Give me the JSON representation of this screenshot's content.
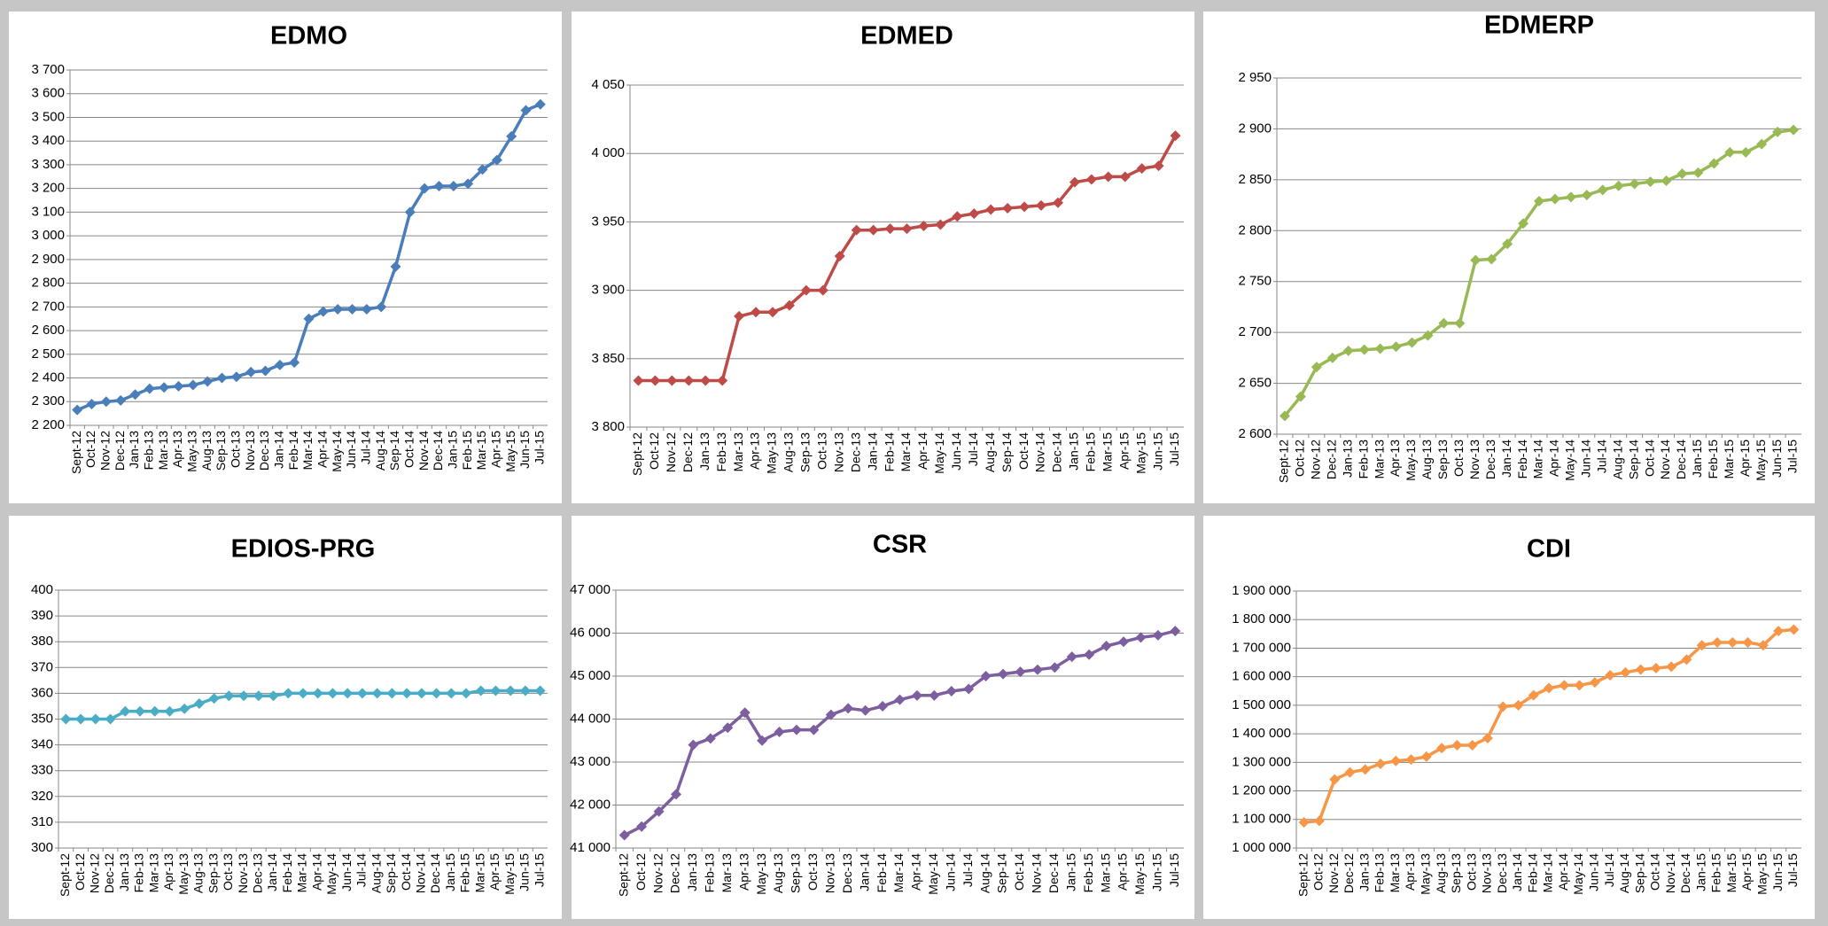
{
  "chart_data": [
    {
      "type": "line",
      "title": "EDMO",
      "color": "#4a7ebb",
      "categories": [
        "Sept-12",
        "Oct-12",
        "Nov-12",
        "Dec-12",
        "Jan-13",
        "Feb-13",
        "Mar-13",
        "Apr-13",
        "May-13",
        "Aug-13",
        "Sep-13",
        "Oct-13",
        "Nov-13",
        "Dec-13",
        "Jan-14",
        "Feb-14",
        "Mar-14",
        "Apr-14",
        "May-14",
        "Jun-14",
        "Jul-14",
        "Aug-14",
        "Sep-14",
        "Oct-14",
        "Nov-14",
        "Dec-14",
        "Jan-15",
        "Feb-15",
        "Mar-15",
        "Apr-15",
        "May-15",
        "Jun-15",
        "Jul-15"
      ],
      "values": [
        2265,
        2290,
        2300,
        2305,
        2330,
        2355,
        2360,
        2365,
        2370,
        2385,
        2400,
        2405,
        2425,
        2430,
        2455,
        2465,
        2650,
        2680,
        2690,
        2690,
        2690,
        2700,
        2870,
        3100,
        3200,
        3210,
        3210,
        3220,
        3280,
        3320,
        3420,
        3530,
        3555
      ],
      "ylim": [
        2200,
        3700
      ],
      "yticks": [
        {
          "value": 2200,
          "label": "2 200"
        },
        {
          "value": 2300,
          "label": "2 300"
        },
        {
          "value": 2400,
          "label": "2 400"
        },
        {
          "value": 2500,
          "label": "2 500"
        },
        {
          "value": 2600,
          "label": "2 600"
        },
        {
          "value": 2700,
          "label": "2 700"
        },
        {
          "value": 2800,
          "label": "2 800"
        },
        {
          "value": 2900,
          "label": "2 900"
        },
        {
          "value": 3000,
          "label": "3 000"
        },
        {
          "value": 3100,
          "label": "3 100"
        },
        {
          "value": 3200,
          "label": "3 200"
        },
        {
          "value": 3300,
          "label": "3 300"
        },
        {
          "value": 3400,
          "label": "3 400"
        },
        {
          "value": 3500,
          "label": "3 500"
        },
        {
          "value": 3600,
          "label": "3 600"
        },
        {
          "value": 3700,
          "label": "3 700"
        }
      ],
      "grid": true
    },
    {
      "type": "line",
      "title": "EDMED",
      "color": "#be4b48",
      "categories": [
        "Sept-12",
        "Oct-12",
        "Nov-12",
        "Dec-12",
        "Jan-13",
        "Feb-13",
        "Mar-13",
        "Apr-13",
        "May-13",
        "Aug-13",
        "Sep-13",
        "Oct-13",
        "Nov-13",
        "Dec-13",
        "Jan-14",
        "Feb-14",
        "Mar-14",
        "Apr-14",
        "May-14",
        "Jun-14",
        "Jul-14",
        "Aug-14",
        "Sep-14",
        "Oct-14",
        "Nov-14",
        "Dec-14",
        "Jan-15",
        "Feb-15",
        "Mar-15",
        "Apr-15",
        "May-15",
        "Jun-15",
        "Jul-15"
      ],
      "values": [
        3834,
        3834,
        3834,
        3834,
        3834,
        3834,
        3881,
        3884,
        3884,
        3889,
        3900,
        3900,
        3925,
        3944,
        3944,
        3945,
        3945,
        3947,
        3948,
        3954,
        3956,
        3959,
        3960,
        3961,
        3962,
        3964,
        3979,
        3981,
        3983,
        3983,
        3989,
        3991,
        4013
      ],
      "ylim": [
        3800,
        4050
      ],
      "yticks": [
        {
          "value": 3800,
          "label": "3 800"
        },
        {
          "value": 3850,
          "label": "3 850"
        },
        {
          "value": 3900,
          "label": "3 900"
        },
        {
          "value": 3950,
          "label": "3 950"
        },
        {
          "value": 4000,
          "label": "4 000"
        },
        {
          "value": 4050,
          "label": "4 050"
        }
      ],
      "grid": true
    },
    {
      "type": "line",
      "title": "EDMERP",
      "color": "#98b954",
      "categories": [
        "Sept-12",
        "Oct-12",
        "Nov-12",
        "Dec-12",
        "Jan-13",
        "Feb-13",
        "Mar-13",
        "Apr-13",
        "May-13",
        "Aug-13",
        "Sep-13",
        "Oct-13",
        "Nov-13",
        "Dec-13",
        "Jan-14",
        "Feb-14",
        "Mar-14",
        "Apr-14",
        "May-14",
        "Jun-14",
        "Jul-14",
        "Aug-14",
        "Sep-14",
        "Oct-14",
        "Nov-14",
        "Dec-14",
        "Jan-15",
        "Feb-15",
        "Mar-15",
        "Apr-15",
        "May-15",
        "Jun-15",
        "Jul-15"
      ],
      "values": [
        2618,
        2637,
        2666,
        2675,
        2682,
        2683,
        2684,
        2686,
        2690,
        2697,
        2709,
        2709,
        2771,
        2772,
        2787,
        2807,
        2829,
        2831,
        2833,
        2835,
        2840,
        2844,
        2846,
        2848,
        2849,
        2856,
        2857,
        2866,
        2877,
        2877,
        2885,
        2897,
        2899
      ],
      "ylim": [
        2600,
        2950
      ],
      "yticks": [
        {
          "value": 2600,
          "label": "2 600"
        },
        {
          "value": 2650,
          "label": "2 650"
        },
        {
          "value": 2700,
          "label": "2 700"
        },
        {
          "value": 2750,
          "label": "2 750"
        },
        {
          "value": 2800,
          "label": "2 800"
        },
        {
          "value": 2850,
          "label": "2 850"
        },
        {
          "value": 2900,
          "label": "2 900"
        },
        {
          "value": 2950,
          "label": "2 950"
        }
      ],
      "grid": true
    },
    {
      "type": "line",
      "title": "EDIOS-PRG",
      "color": "#4bacc6",
      "categories": [
        "Sept-12",
        "Oct-12",
        "Nov-12",
        "Dec-12",
        "Jan-13",
        "Feb-13",
        "Mar-13",
        "Apr-13",
        "May-13",
        "Aug-13",
        "Sep-13",
        "Oct-13",
        "Nov-13",
        "Dec-13",
        "Jan-14",
        "Feb-14",
        "Mar-14",
        "Apr-14",
        "May-14",
        "Jun-14",
        "Jul-14",
        "Aug-14",
        "Sep-14",
        "Oct-14",
        "Nov-14",
        "Dec-14",
        "Jan-15",
        "Feb-15",
        "Mar-15",
        "Apr-15",
        "May-15",
        "Jun-15",
        "Jul-15"
      ],
      "values": [
        350,
        350,
        350,
        350,
        353,
        353,
        353,
        353,
        354,
        356,
        358,
        359,
        359,
        359,
        359,
        360,
        360,
        360,
        360,
        360,
        360,
        360,
        360,
        360,
        360,
        360,
        360,
        360,
        361,
        361,
        361,
        361,
        361
      ],
      "ylim": [
        300,
        400
      ],
      "yticks": [
        300,
        310,
        320,
        330,
        340,
        350,
        360,
        370,
        380,
        390,
        400
      ],
      "grid": true
    },
    {
      "type": "line",
      "title": "CSR",
      "color": "#7d5fa0",
      "categories": [
        "Sept-12",
        "Oct-12",
        "Nov-12",
        "Dec-12",
        "Jan-13",
        "Feb-13",
        "Mar-13",
        "Apr-13",
        "May-13",
        "Aug-13",
        "Sep-13",
        "Oct-13",
        "Nov-13",
        "Dec-13",
        "Jan-14",
        "Feb-14",
        "Mar-14",
        "Apr-14",
        "May-14",
        "Jun-14",
        "Jul-14",
        "Aug-14",
        "Sep-14",
        "Oct-14",
        "Nov-14",
        "Dec-14",
        "Jan-15",
        "Feb-15",
        "Mar-15",
        "Apr-15",
        "May-15",
        "Jun-15",
        "Jul-15"
      ],
      "values": [
        41300,
        41500,
        41850,
        42250,
        43400,
        43550,
        43800,
        44150,
        43500,
        43700,
        43750,
        43750,
        44100,
        44250,
        44200,
        44300,
        44450,
        44550,
        44550,
        44650,
        44700,
        45000,
        45050,
        45100,
        45150,
        45200,
        45450,
        45500,
        45700,
        45800,
        45900,
        45950,
        46050
      ],
      "ylim": [
        41000,
        47000
      ],
      "yticks": [
        {
          "value": 41000,
          "label": "41 000"
        },
        {
          "value": 42000,
          "label": "42 000"
        },
        {
          "value": 43000,
          "label": "43 000"
        },
        {
          "value": 44000,
          "label": "44 000"
        },
        {
          "value": 45000,
          "label": "45 000"
        },
        {
          "value": 46000,
          "label": "46 000"
        },
        {
          "value": 47000,
          "label": "47 000"
        }
      ],
      "grid": true
    },
    {
      "type": "line",
      "title": "CDI",
      "color": "#f79646",
      "categories": [
        "Sept-12",
        "Oct-12",
        "Nov-12",
        "Dec-12",
        "Jan-13",
        "Feb-13",
        "Mar-13",
        "Apr-13",
        "May-13",
        "Aug-13",
        "Sep-13",
        "Oct-13",
        "Nov-13",
        "Dec-13",
        "Jan-14",
        "Feb-14",
        "Mar-14",
        "Apr-14",
        "May-14",
        "Jun-14",
        "Jul-14",
        "Aug-14",
        "Sep-14",
        "Oct-14",
        "Nov-14",
        "Dec-14",
        "Jan-15",
        "Feb-15",
        "Mar-15",
        "Apr-15",
        "May-15",
        "Jun-15",
        "Jul-15"
      ],
      "values": [
        1090000,
        1095000,
        1240000,
        1265000,
        1275000,
        1295000,
        1305000,
        1310000,
        1320000,
        1350000,
        1360000,
        1360000,
        1385000,
        1495000,
        1500000,
        1535000,
        1560000,
        1570000,
        1570000,
        1580000,
        1605000,
        1615000,
        1625000,
        1630000,
        1635000,
        1660000,
        1710000,
        1720000,
        1720000,
        1720000,
        1710000,
        1760000,
        1765000
      ],
      "ylim": [
        1000000,
        1900000
      ],
      "yticks": [
        {
          "value": 1000000,
          "label": "1 000 000"
        },
        {
          "value": 1100000,
          "label": "1 100 000"
        },
        {
          "value": 1200000,
          "label": "1 200 000"
        },
        {
          "value": 1300000,
          "label": "1 300 000"
        },
        {
          "value": 1400000,
          "label": "1 400 000"
        },
        {
          "value": 1500000,
          "label": "1 500 000"
        },
        {
          "value": 1600000,
          "label": "1 600 000"
        },
        {
          "value": 1700000,
          "label": "1 700 000"
        },
        {
          "value": 1800000,
          "label": "1 800 000"
        },
        {
          "value": 1900000,
          "label": "1 900 000"
        }
      ],
      "grid": true
    }
  ]
}
